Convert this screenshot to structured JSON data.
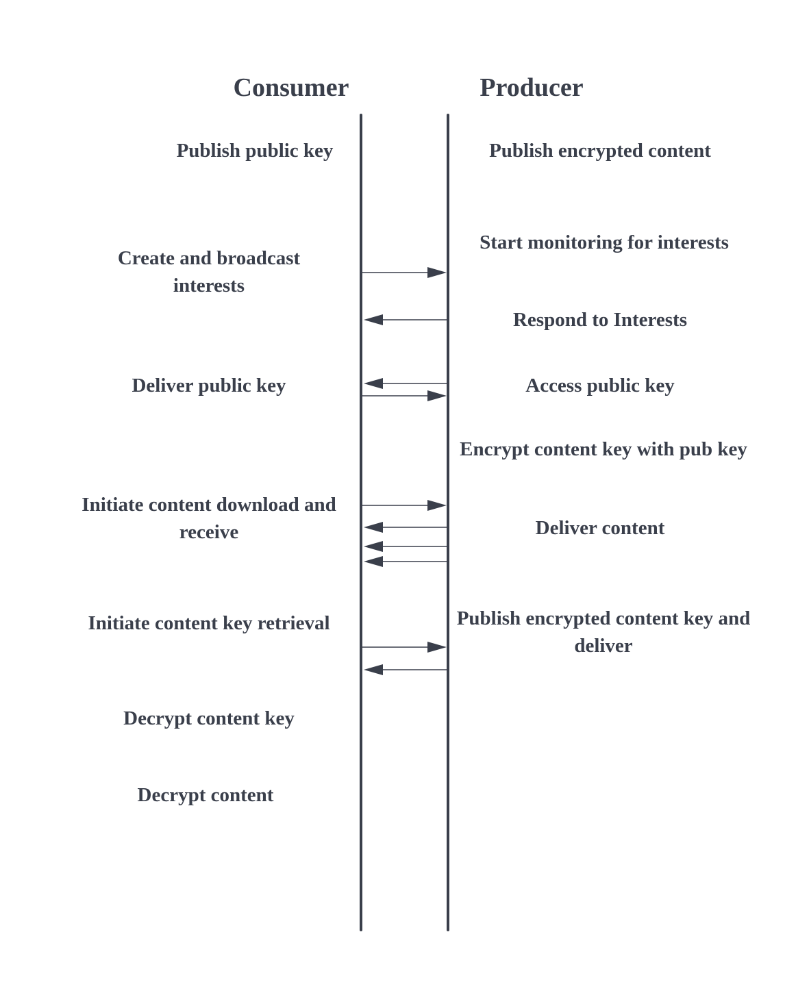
{
  "headers": {
    "consumer": "Consumer",
    "producer": "Producer"
  },
  "consumer_steps": [
    "Publish public key",
    "Create and broadcast interests",
    "Deliver public key",
    "Initiate content download and receive",
    "Initiate content key retrieval",
    "Decrypt content key",
    "Decrypt content"
  ],
  "producer_steps": [
    "Publish encrypted content",
    "Start monitoring for interests",
    "Respond to Interests",
    "Access public key",
    "Encrypt content key with pub key",
    "Deliver content",
    "Publish encrypted content key and deliver"
  ],
  "messages": [
    {
      "from": "consumer",
      "to": "producer"
    },
    {
      "from": "producer",
      "to": "consumer"
    },
    {
      "from": "producer",
      "to": "consumer"
    },
    {
      "from": "consumer",
      "to": "producer"
    },
    {
      "from": "consumer",
      "to": "producer"
    },
    {
      "from": "producer",
      "to": "consumer"
    },
    {
      "from": "producer",
      "to": "consumer"
    },
    {
      "from": "producer",
      "to": "consumer"
    },
    {
      "from": "consumer",
      "to": "producer"
    },
    {
      "from": "producer",
      "to": "consumer"
    }
  ],
  "colors": {
    "ink": "#3a3f4b",
    "background": "#ffffff"
  }
}
